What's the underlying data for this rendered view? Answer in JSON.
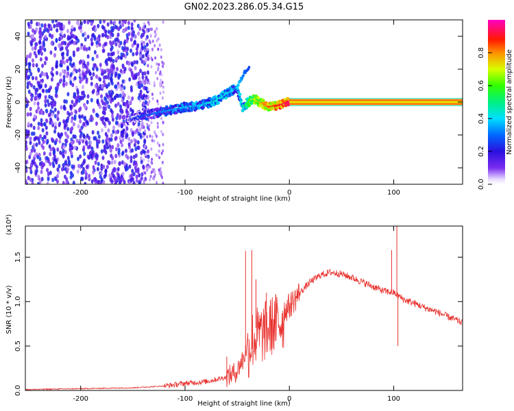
{
  "title": "GN02.2023.286.05.34.G15",
  "chart_data": [
    {
      "type": "heatmap",
      "subtype": "spectrogram",
      "xlabel": "Height of straight line (km)",
      "ylabel": "Frequency (Hz)",
      "xlim": [
        -253,
        166
      ],
      "ylim": [
        -50,
        50
      ],
      "xticks": [
        -200,
        -100,
        0,
        100
      ],
      "yticks": [
        -40,
        -20,
        0,
        20,
        40
      ],
      "colorbar": {
        "label": "Normalized spectral amplitude",
        "range": [
          0.0,
          1.0
        ],
        "ticks": [
          0.0,
          0.2,
          0.4,
          0.6,
          0.8
        ],
        "colormap": "rainbow (white-violet-blue-cyan-green-yellow-red-magenta)"
      },
      "noise_region": {
        "x_range": [
          -253,
          -135
        ],
        "y_range": [
          -50,
          50
        ],
        "amplitude": [
          0.05,
          0.25
        ]
      },
      "signal_ridge": [
        {
          "x": -155,
          "y": -11,
          "amplitude": 0.22
        },
        {
          "x": -145,
          "y": -9,
          "amplitude": 0.25
        },
        {
          "x": -130,
          "y": -7,
          "amplitude": 0.3
        },
        {
          "x": -115,
          "y": -5,
          "amplitude": 0.35
        },
        {
          "x": -100,
          "y": -3,
          "amplitude": 0.38
        },
        {
          "x": -85,
          "y": -2,
          "amplitude": 0.4
        },
        {
          "x": -70,
          "y": 1,
          "amplitude": 0.45
        },
        {
          "x": -60,
          "y": 5,
          "amplitude": 0.42
        },
        {
          "x": -50,
          "y": 9,
          "amplitude": 0.4
        },
        {
          "x": -43,
          "y": 18,
          "amplitude": 0.3
        },
        {
          "x": -38,
          "y": 22,
          "amplitude": 0.25
        },
        {
          "x": -45,
          "y": -3,
          "amplitude": 0.45
        },
        {
          "x": -35,
          "y": 2,
          "amplitude": 0.7
        },
        {
          "x": -25,
          "y": -1,
          "amplitude": 0.8
        },
        {
          "x": -20,
          "y": -3,
          "amplitude": 0.85
        },
        {
          "x": -10,
          "y": -2,
          "amplitude": 0.9
        },
        {
          "x": 0,
          "y": 0,
          "amplitude": 0.97
        },
        {
          "x": 80,
          "y": 0,
          "amplitude": 0.97
        },
        {
          "x": 166,
          "y": 0,
          "amplitude": 0.97
        }
      ]
    },
    {
      "type": "line",
      "xlabel": "Height of straight line (km)",
      "ylabel": "SNR (10 * v/v)",
      "yscale_label": "(x10⁴)",
      "xlim": [
        -253,
        166
      ],
      "ylim": [
        0,
        1.85
      ],
      "xticks": [
        -200,
        -100,
        0,
        100
      ],
      "yticks": [
        0.0,
        0.5,
        1.0,
        1.5
      ],
      "ytick_labels": [
        "0.0",
        "0.5",
        "1.0",
        "1.5"
      ],
      "color": "#e8302c",
      "series": [
        {
          "x": [
            -253,
            -200,
            -150,
            -120,
            -100,
            -80,
            -60,
            -50,
            -45,
            -40,
            -35,
            -30,
            -25,
            -20,
            -15,
            -10,
            -5,
            0,
            10,
            20,
            30,
            40,
            50,
            60,
            70,
            80,
            90,
            100,
            105,
            110,
            120,
            130,
            140,
            150,
            166
          ],
          "y": [
            0.01,
            0.02,
            0.03,
            0.05,
            0.08,
            0.1,
            0.15,
            0.22,
            0.35,
            0.55,
            0.68,
            0.72,
            0.75,
            0.8,
            0.85,
            0.88,
            0.9,
            0.95,
            1.1,
            1.22,
            1.3,
            1.33,
            1.31,
            1.27,
            1.22,
            1.17,
            1.12,
            1.1,
            1.06,
            1.02,
            0.98,
            0.93,
            0.89,
            0.84,
            0.76
          ]
        }
      ],
      "spikes": [
        {
          "x": -60,
          "y": 0.38
        },
        {
          "x": -42,
          "y": 1.57
        },
        {
          "x": -36,
          "y": 1.58
        },
        {
          "x": -32,
          "y": 1.25
        },
        {
          "x": -22,
          "y": 1.1
        },
        {
          "x": -12,
          "y": 1.05
        },
        {
          "x": 98,
          "y": 1.58
        },
        {
          "x": 103,
          "y": 1.85
        },
        {
          "x": 104,
          "y": 0.5
        }
      ]
    }
  ]
}
